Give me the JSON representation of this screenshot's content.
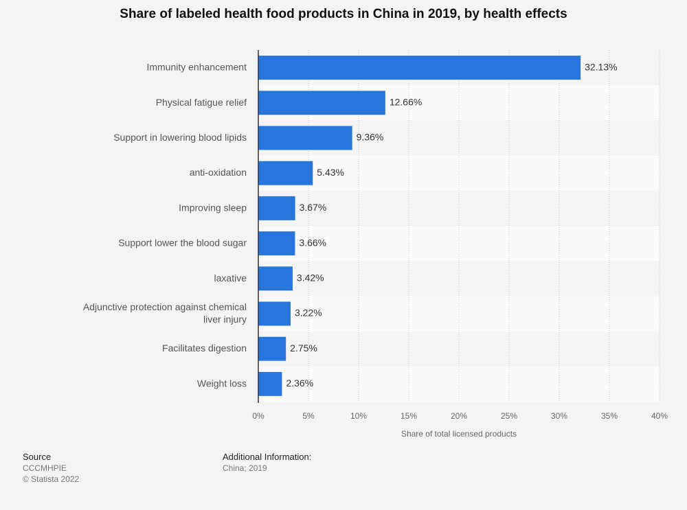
{
  "chart_data": {
    "type": "bar",
    "orientation": "horizontal",
    "title": "Share of labeled health food products in China in 2019, by health effects",
    "categories": [
      "Immunity enhancement",
      "Physical fatigue relief",
      "Support in lowering blood lipids",
      "anti-oxidation",
      "Improving sleep",
      "Support lower the blood sugar",
      "laxative",
      "Adjunctive protection against chemical liver injury",
      "Facilitates digestion",
      "Weight loss"
    ],
    "values": [
      32.13,
      12.66,
      9.36,
      5.43,
      3.67,
      3.66,
      3.42,
      3.22,
      2.75,
      2.36
    ],
    "value_labels": [
      "32.13%",
      "12.66%",
      "9.36%",
      "5.43%",
      "3.67%",
      "3.66%",
      "3.42%",
      "3.22%",
      "2.75%",
      "2.36%"
    ],
    "xlabel": "Share of total licensed products",
    "ylabel": "",
    "xlim": [
      0,
      40
    ],
    "ticks": [
      0,
      5,
      10,
      15,
      20,
      25,
      30,
      35,
      40
    ],
    "tick_labels": [
      "0%",
      "5%",
      "10%",
      "15%",
      "20%",
      "25%",
      "30%",
      "35%",
      "40%"
    ],
    "bar_color": "#2876dd",
    "grid": true
  },
  "footer": {
    "source_heading": "Source",
    "source_name": "CCCMHPIE",
    "copyright": "© Statista 2022",
    "info_heading": "Additional Information:",
    "info_text": "China; 2019"
  }
}
